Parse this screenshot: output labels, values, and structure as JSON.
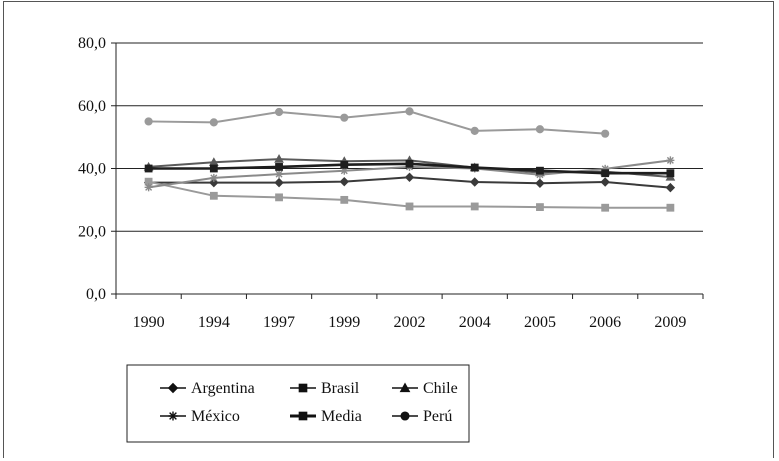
{
  "chart_data": {
    "type": "line",
    "title": "",
    "xlabel": "",
    "ylabel": "",
    "categories": [
      "1990",
      "1994",
      "1997",
      "1999",
      "2002",
      "2004",
      "2005",
      "2006",
      "2009"
    ],
    "y_ticks": [
      "0,0",
      "20,0",
      "40,0",
      "60,0",
      "80,0"
    ],
    "ylim": [
      0,
      80
    ],
    "grid": true,
    "legend_position": "bottom",
    "series": [
      {
        "name": "Argentina",
        "marker": "diamond",
        "color": "#3a3a3a",
        "values": [
          35.5,
          35.5,
          35.5,
          35.8,
          37.2,
          35.7,
          35.3,
          35.7,
          33.9
        ]
      },
      {
        "name": "Brasil",
        "marker": "square",
        "color": "#9a9a9a",
        "values": [
          35.8,
          31.3,
          30.8,
          30.0,
          27.9,
          27.9,
          27.7,
          27.5,
          27.5
        ]
      },
      {
        "name": "Chile",
        "marker": "triangle",
        "color": "#5a5a5a",
        "values": [
          40.5,
          42.0,
          43.0,
          42.3,
          42.6,
          40.3,
          38.7,
          39.0,
          37.3
        ]
      },
      {
        "name": "México",
        "marker": "asterisk",
        "color": "#8a8a8a",
        "values": [
          34.0,
          37.0,
          38.2,
          39.3,
          40.5,
          40.0,
          38.0,
          39.9,
          42.6
        ]
      },
      {
        "name": "Media",
        "marker": "square",
        "color": "#1e1e1e",
        "values": [
          40.0,
          40.0,
          40.5,
          41.2,
          41.5,
          40.3,
          39.3,
          38.5,
          38.5
        ]
      },
      {
        "name": "Perú",
        "marker": "circle",
        "color": "#9a9a9a",
        "values": [
          55.0,
          54.7,
          58.0,
          56.2,
          58.2,
          52.0,
          52.5,
          51.1,
          null
        ]
      }
    ]
  }
}
